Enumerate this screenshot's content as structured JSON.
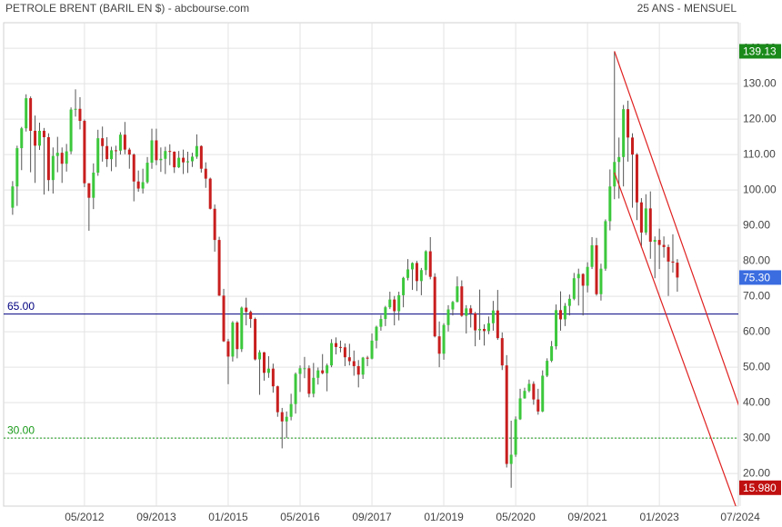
{
  "chart_data": {
    "type": "candlestick",
    "title": "PETROLE BRENT (BARIL EN $) - abcbourse.com",
    "subtitle": "25 ANS - MENSUEL",
    "up_color": "#3cc83c",
    "down_color": "#c81e1e",
    "x": [
      "01/2011",
      "02/2011",
      "03/2011",
      "04/2011",
      "05/2011",
      "06/2011",
      "07/2011",
      "08/2011",
      "09/2011",
      "10/2011",
      "11/2011",
      "12/2011",
      "01/2012",
      "02/2012",
      "03/2012",
      "04/2012",
      "05/2012",
      "06/2012",
      "07/2012",
      "08/2012",
      "09/2012",
      "10/2012",
      "11/2012",
      "12/2012",
      "01/2013",
      "02/2013",
      "03/2013",
      "04/2013",
      "05/2013",
      "06/2013",
      "07/2013",
      "08/2013",
      "09/2013",
      "10/2013",
      "11/2013",
      "12/2013",
      "01/2014",
      "02/2014",
      "03/2014",
      "04/2014",
      "05/2014",
      "06/2014",
      "07/2014",
      "08/2014",
      "09/2014",
      "10/2014",
      "11/2014",
      "12/2014",
      "01/2015",
      "02/2015",
      "03/2015",
      "04/2015",
      "05/2015",
      "06/2015",
      "07/2015",
      "08/2015",
      "09/2015",
      "10/2015",
      "11/2015",
      "12/2015",
      "01/2016",
      "02/2016",
      "03/2016",
      "04/2016",
      "05/2016",
      "06/2016",
      "07/2016",
      "08/2016",
      "09/2016",
      "10/2016",
      "11/2016",
      "12/2016",
      "01/2017",
      "02/2017",
      "03/2017",
      "04/2017",
      "05/2017",
      "06/2017",
      "07/2017",
      "08/2017",
      "09/2017",
      "10/2017",
      "11/2017",
      "12/2017",
      "01/2018",
      "02/2018",
      "03/2018",
      "04/2018",
      "05/2018",
      "06/2018",
      "07/2018",
      "08/2018",
      "09/2018",
      "10/2018",
      "11/2018",
      "12/2018",
      "01/2019",
      "02/2019",
      "03/2019",
      "04/2019",
      "05/2019",
      "06/2019",
      "07/2019",
      "08/2019",
      "09/2019",
      "10/2019",
      "11/2019",
      "12/2019",
      "01/2020",
      "02/2020",
      "03/2020",
      "04/2020",
      "05/2020",
      "06/2020",
      "07/2020",
      "08/2020",
      "09/2020",
      "10/2020",
      "11/2020",
      "12/2020",
      "01/2021",
      "02/2021",
      "03/2021",
      "04/2021",
      "05/2021",
      "06/2021",
      "07/2021",
      "08/2021",
      "09/2021",
      "10/2021",
      "11/2021",
      "12/2021",
      "01/2022",
      "02/2022",
      "03/2022",
      "04/2022",
      "05/2022",
      "06/2022",
      "07/2022",
      "08/2022",
      "09/2022",
      "10/2022",
      "11/2022",
      "12/2022",
      "01/2023",
      "02/2023",
      "03/2023",
      "04/2023",
      "05/2023"
    ],
    "open": [
      95.0,
      101.0,
      111.8,
      117.4,
      125.9,
      116.7,
      112.5,
      116.7,
      114.9,
      102.8,
      109.6,
      110.5,
      107.4,
      110.9,
      122.7,
      122.9,
      119.5,
      101.9,
      97.8,
      104.9,
      114.6,
      112.4,
      108.7,
      111.2,
      111.1,
      115.6,
      111.4,
      110.0,
      102.4,
      100.4,
      102.2,
      107.7,
      114.0,
      108.4,
      108.8,
      111.0,
      110.8,
      106.4,
      109.1,
      107.8,
      108.1,
      109.4,
      112.4,
      106.0,
      103.2,
      94.7,
      85.9,
      70.2,
      57.3,
      52.99,
      62.6,
      55.1,
      66.8,
      65.6,
      63.6,
      52.2,
      54.2,
      48.4,
      49.6,
      44.6,
      37.3,
      34.7,
      36.0,
      39.6,
      48.1,
      49.7,
      49.7,
      42.5,
      47.0,
      49.1,
      48.3,
      50.5,
      56.8,
      55.7,
      55.6,
      52.8,
      51.7,
      50.3,
      47.9,
      52.7,
      52.4,
      57.5,
      61.4,
      63.6,
      66.9,
      69.1,
      65.8,
      70.3,
      75.2,
      77.6,
      79.4,
      74.3,
      77.4,
      82.7,
      75.5,
      58.7,
      53.8,
      61.9,
      66.3,
      68.4,
      72.8,
      64.5,
      66.6,
      65.2,
      60.4,
      60.8,
      60.2,
      62.4,
      66.0,
      58.2,
      50.5,
      22.7,
      25.3,
      35.3,
      41.2,
      43.3,
      45.3,
      40.9,
      37.5,
      47.6,
      51.8,
      55.9,
      66.1,
      63.5,
      67.3,
      69.3,
      75.1,
      76.3,
      72.99,
      78.3,
      84.4,
      70.6,
      77.8,
      91.2,
      100.99,
      107.9,
      109.3,
      122.8,
      114.8,
      110.0,
      96.5,
      88.0,
      94.8,
      85.4,
      85.9,
      84.5,
      83.9,
      79.8,
      79.5
    ],
    "high": [
      102.5,
      112.5,
      117.8,
      127.0,
      126.4,
      121.0,
      119.0,
      117.5,
      116.0,
      112.0,
      115.0,
      112.0,
      113.0,
      123.3,
      128.4,
      126.2,
      119.9,
      101.9,
      107.5,
      117.0,
      117.9,
      114.9,
      112.2,
      112.5,
      116.3,
      119.2,
      111.9,
      110.3,
      105.5,
      106.0,
      109.3,
      117.3,
      117.3,
      112.0,
      112.2,
      112.9,
      110.9,
      111.0,
      111.4,
      110.8,
      110.5,
      115.7,
      112.6,
      107.8,
      103.5,
      95.9,
      86.8,
      72.1,
      58.0,
      63.0,
      63.0,
      67.1,
      69.6,
      66.0,
      64.0,
      54.8,
      54.3,
      53.1,
      51.0,
      44.8,
      38.5,
      37.5,
      42.5,
      48.5,
      50.5,
      52.9,
      50.5,
      51.2,
      49.9,
      53.7,
      51.0,
      57.9,
      58.4,
      57.5,
      56.7,
      56.6,
      54.7,
      52.0,
      52.9,
      53.2,
      59.5,
      61.7,
      64.7,
      67.3,
      71.3,
      70.1,
      71.3,
      75.5,
      80.5,
      79.6,
      80.0,
      78.0,
      83.0,
      86.7,
      76.5,
      62.9,
      62.4,
      67.5,
      68.7,
      75.6,
      74.5,
      67.5,
      67.5,
      65.6,
      71.9,
      62.1,
      64.3,
      68.7,
      71.8,
      59.8,
      53.4,
      34.9,
      36.1,
      43.9,
      44.2,
      46.5,
      46.0,
      43.9,
      49.1,
      52.5,
      57.4,
      67.7,
      71.4,
      68.1,
      70.5,
      76.6,
      77.8,
      76.5,
      79.6,
      86.7,
      86.5,
      79.2,
      91.7,
      105.8,
      139.13,
      114.8,
      124.0,
      125.2,
      116.0,
      110.4,
      97.7,
      98.8,
      99.6,
      86.9,
      89.1,
      86.9,
      84.6,
      87.5,
      80.5
    ],
    "low": [
      93.0,
      95.5,
      105.6,
      116.5,
      105.0,
      102.0,
      111.3,
      98.7,
      99.7,
      99.0,
      105.0,
      102.0,
      105.2,
      110.1,
      120.7,
      117.1,
      100.8,
      88.5,
      94.6,
      104.0,
      108.0,
      106.5,
      105.3,
      106.5,
      110.0,
      110.1,
      106.0,
      96.8,
      99.5,
      99.0,
      101.8,
      106.0,
      107.0,
      105.1,
      104.5,
      107.0,
      104.8,
      106.2,
      104.5,
      104.8,
      106.5,
      108.8,
      104.9,
      100.6,
      94.5,
      82.6,
      70.1,
      57.1,
      45.2,
      51.6,
      52.5,
      54.3,
      61.8,
      61.1,
      51.9,
      42.2,
      46.2,
      47.0,
      42.8,
      36.0,
      27.1,
      30.0,
      35.0,
      36.9,
      43.0,
      46.9,
      41.5,
      41.5,
      45.1,
      48.0,
      43.2,
      50.0,
      53.6,
      54.2,
      50.3,
      50.5,
      47.6,
      44.3,
      46.7,
      50.3,
      52.2,
      55.3,
      60.3,
      61.6,
      66.4,
      61.8,
      63.2,
      66.9,
      74.5,
      71.8,
      71.5,
      70.3,
      76.0,
      74.8,
      58.4,
      50.0,
      52.1,
      60.1,
      64.6,
      68.3,
      64.2,
      59.5,
      61.2,
      55.9,
      57.7,
      56.1,
      59.3,
      60.3,
      57.7,
      49.2,
      21.7,
      15.98,
      24.7,
      35.1,
      41.1,
      42.9,
      39.4,
      36.6,
      37.3,
      47.2,
      51.4,
      55.0,
      60.3,
      61.6,
      64.6,
      68.9,
      67.4,
      64.6,
      71.1,
      77.7,
      70.2,
      68.8,
      77.2,
      88.6,
      97.4,
      97.6,
      101.0,
      108.0,
      95.0,
      91.5,
      83.7,
      87.3,
      80.6,
      75.1,
      77.7,
      80.9,
      70.1,
      76.7,
      71.3
    ],
    "close": [
      101.0,
      111.8,
      117.4,
      125.9,
      116.7,
      112.5,
      116.7,
      114.9,
      102.8,
      109.6,
      110.5,
      107.4,
      110.9,
      122.7,
      122.9,
      119.5,
      101.9,
      97.8,
      104.9,
      114.6,
      112.4,
      108.7,
      111.2,
      111.1,
      115.6,
      111.4,
      110.0,
      102.4,
      100.4,
      102.2,
      107.7,
      114.0,
      108.4,
      108.8,
      111.0,
      110.8,
      106.4,
      109.1,
      107.8,
      108.1,
      109.4,
      112.4,
      106.0,
      103.2,
      94.7,
      85.9,
      70.2,
      57.3,
      52.99,
      62.6,
      55.1,
      66.8,
      65.6,
      63.6,
      52.2,
      54.2,
      48.4,
      49.6,
      44.6,
      37.3,
      34.7,
      36.0,
      39.6,
      48.1,
      49.7,
      49.7,
      42.5,
      47.0,
      49.1,
      48.3,
      50.5,
      56.8,
      55.7,
      55.6,
      52.8,
      51.7,
      50.3,
      47.9,
      52.7,
      52.4,
      57.5,
      61.4,
      63.6,
      66.9,
      69.1,
      65.8,
      70.3,
      75.2,
      77.6,
      79.4,
      74.3,
      77.4,
      82.7,
      75.5,
      58.7,
      53.8,
      61.9,
      66.3,
      68.4,
      72.8,
      64.5,
      66.6,
      65.2,
      60.4,
      60.8,
      60.2,
      62.4,
      66.0,
      58.2,
      50.5,
      22.7,
      25.3,
      35.3,
      41.2,
      43.3,
      45.3,
      40.9,
      37.5,
      47.6,
      51.8,
      55.9,
      66.1,
      63.5,
      67.3,
      69.3,
      75.1,
      76.3,
      72.99,
      78.3,
      84.4,
      70.6,
      77.8,
      91.2,
      100.99,
      107.9,
      109.3,
      122.8,
      114.8,
      110.0,
      96.5,
      88.0,
      94.8,
      85.4,
      85.9,
      84.5,
      83.9,
      79.8,
      79.5,
      75.3
    ],
    "xlim": [
      "11/2010",
      "08/2024"
    ],
    "xticks": [
      "05/2012",
      "09/2013",
      "01/2015",
      "05/2016",
      "09/2017",
      "01/2019",
      "05/2020",
      "09/2021",
      "01/2023",
      "07/2024"
    ],
    "ylim": [
      10.8,
      147.2
    ],
    "yticks": [
      {
        "value": 20,
        "label": "20.00"
      },
      {
        "value": 30,
        "label": "30.00"
      },
      {
        "value": 40,
        "label": "40.00"
      },
      {
        "value": 50,
        "label": "50.00"
      },
      {
        "value": 60,
        "label": "60.00"
      },
      {
        "value": 70,
        "label": "70.00"
      },
      {
        "value": 80,
        "label": "80.00"
      },
      {
        "value": 90,
        "label": "90.00"
      },
      {
        "value": 100,
        "label": "100.00"
      },
      {
        "value": 110,
        "label": "110.00"
      },
      {
        "value": 120,
        "label": "120.00"
      },
      {
        "value": 130,
        "label": "130.00"
      },
      {
        "value": 140,
        "label": "140.00"
      }
    ],
    "grid": true,
    "hlines": [
      {
        "value": 65,
        "label": "65.00",
        "color": "#000080",
        "style": "solid"
      },
      {
        "value": 30,
        "label": "30.00",
        "color": "#1a9a1a",
        "style": "dotted"
      }
    ],
    "trendlines": [
      {
        "x": [
          "03/2022",
          "08/2024"
        ],
        "y": [
          139.13,
          34.4
        ],
        "color": "#e02020"
      },
      {
        "x": [
          "03/2022",
          "06/2024"
        ],
        "y": [
          104.9,
          10.8
        ],
        "color": "#e02020"
      }
    ],
    "price_markers": [
      {
        "value": 139.13,
        "color": "#1a8a1a"
      },
      {
        "value": 75.3,
        "label": "75.30",
        "color": "#3b6de0"
      },
      {
        "value": 15.98,
        "label": "15.980",
        "color": "#c01010"
      }
    ]
  }
}
